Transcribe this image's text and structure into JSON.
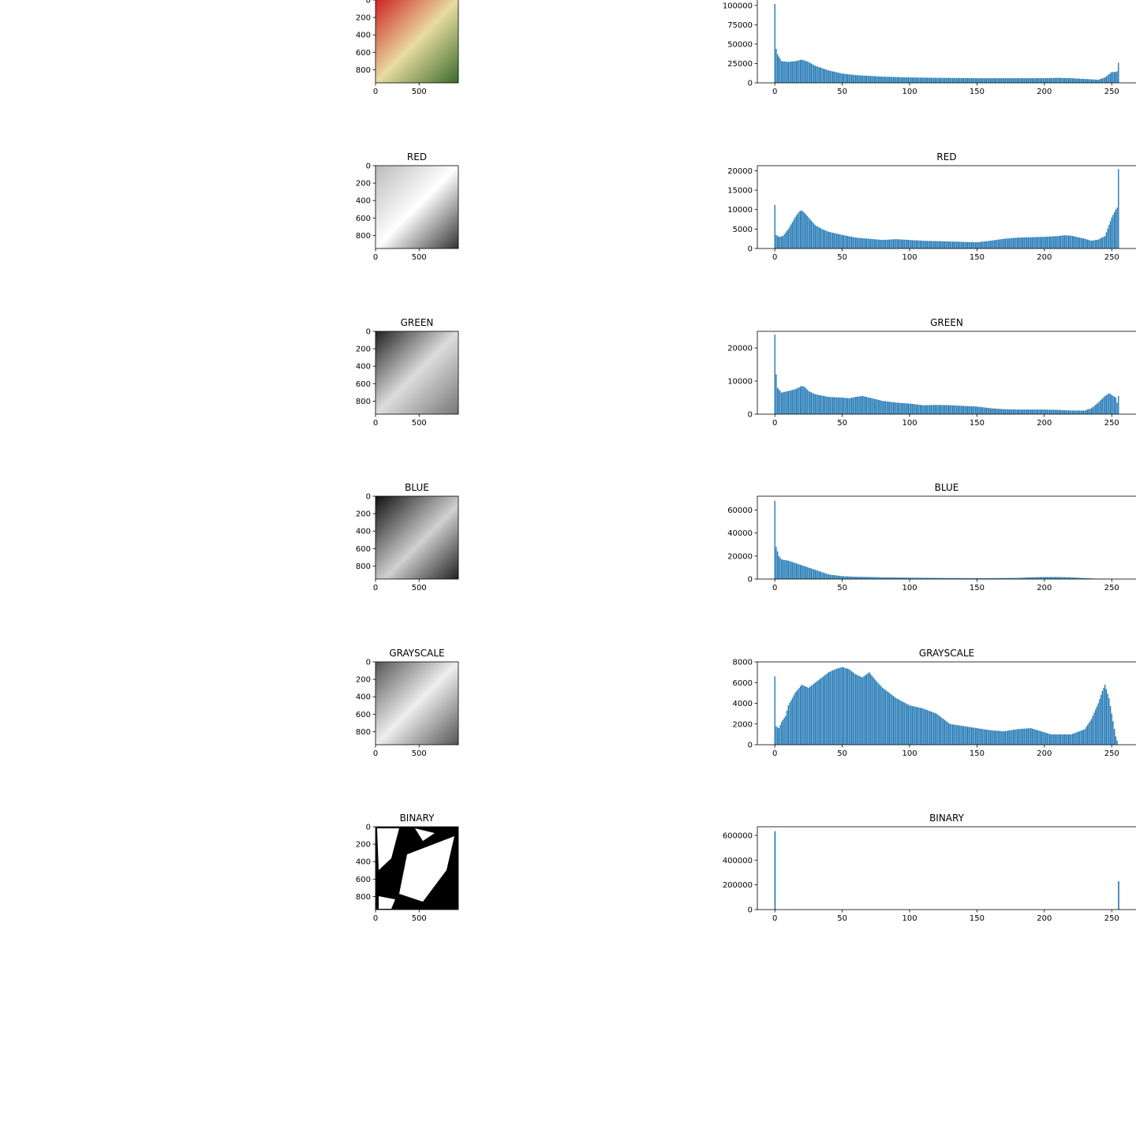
{
  "figure": {
    "rows": [
      {
        "image_title": "",
        "hist_title": ""
      },
      {
        "image_title": "RED",
        "hist_title": "RED"
      },
      {
        "image_title": "GREEN",
        "hist_title": "GREEN"
      },
      {
        "image_title": "BLUE",
        "hist_title": "BLUE"
      },
      {
        "image_title": "GRAYSCALE",
        "hist_title": "GRAYSCALE"
      },
      {
        "image_title": "BINARY",
        "hist_title": "BINARY"
      }
    ],
    "colors": {
      "bar": "#1f77b4",
      "axis": "#000000",
      "background": "#ffffff"
    }
  },
  "chart_data": [
    {
      "type": "bar",
      "title": "",
      "x_ticks": [
        0,
        50,
        100,
        150,
        200,
        250
      ],
      "y_ticks": [
        0,
        25000,
        50000,
        75000,
        100000
      ],
      "xlim": [
        -13,
        268
      ],
      "ylim": [
        0,
        107000
      ],
      "series": [
        {
          "x": [
            0,
            1,
            2,
            5,
            10,
            15,
            20,
            25,
            30,
            40,
            50,
            60,
            70,
            80,
            100,
            120,
            150,
            180,
            200,
            210,
            220,
            230,
            240,
            245,
            250,
            253,
            254,
            255
          ],
          "values": [
            102000,
            44000,
            37000,
            28000,
            27000,
            28000,
            30000,
            27000,
            22000,
            16000,
            12000,
            10000,
            9000,
            8000,
            7000,
            6500,
            6000,
            6000,
            6000,
            6500,
            6000,
            5000,
            4000,
            7000,
            14000,
            14000,
            15000,
            26000
          ]
        }
      ]
    },
    {
      "type": "bar",
      "title": "RED",
      "x_ticks": [
        0,
        50,
        100,
        150,
        200,
        250
      ],
      "y_ticks": [
        0,
        5000,
        10000,
        15000,
        20000
      ],
      "xlim": [
        -13,
        268
      ],
      "ylim": [
        0,
        21300
      ],
      "series": [
        {
          "x": [
            0,
            1,
            3,
            6,
            10,
            15,
            18,
            20,
            22,
            25,
            30,
            35,
            40,
            50,
            60,
            70,
            80,
            90,
            100,
            110,
            120,
            130,
            140,
            150,
            160,
            170,
            180,
            190,
            200,
            210,
            215,
            220,
            230,
            235,
            240,
            245,
            250,
            253,
            254,
            255
          ],
          "values": [
            11200,
            3500,
            3000,
            3200,
            5000,
            8000,
            9500,
            9800,
            9200,
            8000,
            6000,
            5000,
            4300,
            3500,
            2800,
            2500,
            2200,
            2400,
            2200,
            2000,
            1900,
            1800,
            1700,
            1600,
            2000,
            2500,
            2800,
            2900,
            3000,
            3200,
            3400,
            3300,
            2500,
            2000,
            2300,
            3200,
            8000,
            10000,
            10500,
            20400
          ]
        }
      ]
    },
    {
      "type": "bar",
      "title": "GREEN",
      "x_ticks": [
        0,
        50,
        100,
        150,
        200,
        250
      ],
      "y_ticks": [
        0,
        10000,
        20000
      ],
      "xlim": [
        -13,
        268
      ],
      "ylim": [
        0,
        25000
      ],
      "series": [
        {
          "x": [
            0,
            1,
            2,
            5,
            10,
            15,
            20,
            22,
            25,
            30,
            40,
            50,
            55,
            60,
            65,
            70,
            80,
            90,
            100,
            110,
            120,
            130,
            140,
            150,
            160,
            170,
            180,
            190,
            200,
            210,
            220,
            230,
            235,
            240,
            245,
            248,
            250,
            253,
            254,
            255
          ],
          "values": [
            24000,
            12000,
            8000,
            6500,
            7000,
            7500,
            8500,
            8300,
            7000,
            6000,
            5200,
            5000,
            4800,
            5200,
            5500,
            5000,
            4000,
            3500,
            3200,
            2700,
            2800,
            2700,
            2500,
            2300,
            1800,
            1500,
            1400,
            1400,
            1400,
            1300,
            1100,
            1100,
            1800,
            3500,
            5500,
            6300,
            5800,
            5000,
            3500,
            5500
          ]
        }
      ]
    },
    {
      "type": "bar",
      "title": "BLUE",
      "x_ticks": [
        0,
        50,
        100,
        150,
        200,
        250
      ],
      "y_ticks": [
        0,
        20000,
        40000,
        60000
      ],
      "xlim": [
        -13,
        268
      ],
      "ylim": [
        0,
        72000
      ],
      "series": [
        {
          "x": [
            0,
            1,
            2,
            3,
            5,
            10,
            15,
            20,
            25,
            30,
            35,
            40,
            50,
            60,
            70,
            80,
            100,
            120,
            140,
            160,
            180,
            190,
            200,
            210,
            220,
            230,
            240,
            245,
            250,
            255
          ],
          "values": [
            68000,
            28000,
            24000,
            20000,
            17000,
            16000,
            14000,
            12000,
            10000,
            8000,
            6000,
            4000,
            2500,
            2000,
            1800,
            1500,
            1200,
            1000,
            800,
            800,
            1000,
            1500,
            1800,
            1800,
            1500,
            800,
            300,
            200,
            100,
            50
          ]
        }
      ]
    },
    {
      "type": "bar",
      "title": "GRAYSCALE",
      "x_ticks": [
        0,
        50,
        100,
        150,
        200,
        250
      ],
      "y_ticks": [
        0,
        2000,
        4000,
        6000,
        8000
      ],
      "xlim": [
        -13,
        268
      ],
      "ylim": [
        0,
        8000
      ],
      "series": [
        {
          "x": [
            0,
            1,
            3,
            5,
            8,
            10,
            15,
            20,
            25,
            30,
            35,
            40,
            45,
            50,
            55,
            60,
            65,
            70,
            75,
            80,
            90,
            100,
            110,
            120,
            130,
            140,
            150,
            160,
            170,
            180,
            190,
            200,
            205,
            210,
            220,
            230,
            235,
            240,
            243,
            245,
            248,
            250,
            253,
            255
          ],
          "values": [
            6600,
            1800,
            1600,
            2200,
            2800,
            3800,
            5000,
            5800,
            5500,
            6000,
            6500,
            7000,
            7300,
            7500,
            7300,
            6800,
            6500,
            7000,
            6200,
            5500,
            4500,
            3800,
            3500,
            3000,
            2000,
            1800,
            1600,
            1400,
            1300,
            1500,
            1600,
            1200,
            1000,
            1000,
            1000,
            1500,
            2500,
            4000,
            5200,
            5800,
            4500,
            3000,
            800,
            0
          ]
        }
      ]
    },
    {
      "type": "bar",
      "title": "BINARY",
      "x_ticks": [
        0,
        50,
        100,
        150,
        200,
        250
      ],
      "y_ticks": [
        0,
        200000,
        400000,
        600000
      ],
      "xlim": [
        -13,
        268
      ],
      "ylim": [
        0,
        670000
      ],
      "series": [
        {
          "x": [
            0,
            255
          ],
          "values": [
            634000,
            230000
          ]
        }
      ]
    }
  ]
}
